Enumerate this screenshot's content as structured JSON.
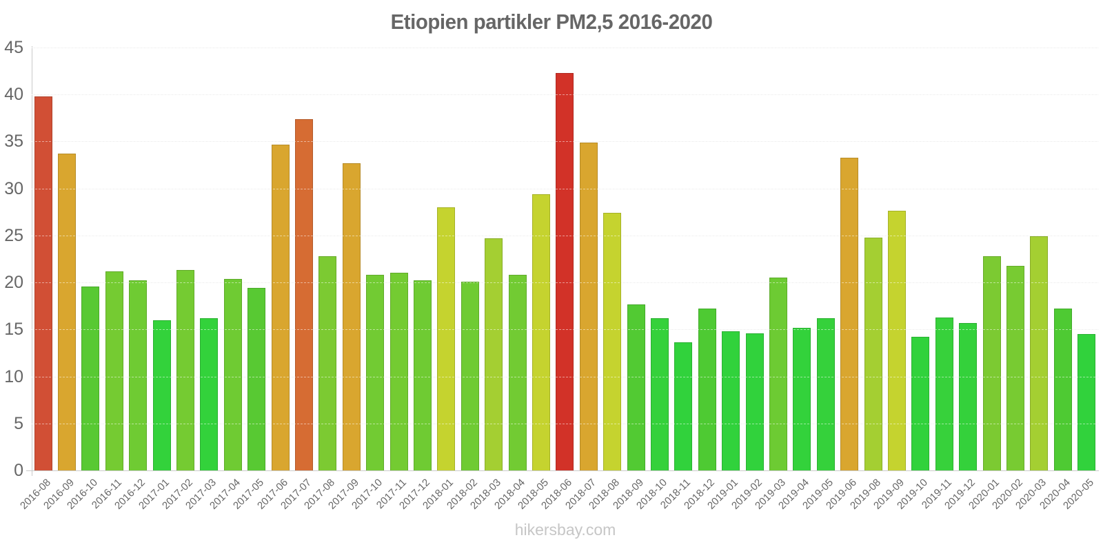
{
  "title": "Etiopien partikler PM2,5 2016-2020",
  "watermark": "hikersbay.com",
  "chart_data": {
    "type": "bar",
    "title": "Etiopien partikler PM2,5 2016-2020",
    "categories": [
      "2016-08",
      "2016-09",
      "2016-10",
      "2016-11",
      "2016-12",
      "2017-01",
      "2017-02",
      "2017-03",
      "2017-04",
      "2017-05",
      "2017-06",
      "2017-07",
      "2017-08",
      "2017-09",
      "2017-10",
      "2017-11",
      "2017-12",
      "2018-01",
      "2018-02",
      "2018-03",
      "2018-04",
      "2018-05",
      "2018-06",
      "2018-07",
      "2018-08",
      "2018-09",
      "2018-10",
      "2018-11",
      "2018-12",
      "2019-01",
      "2019-02",
      "2019-03",
      "2019-04",
      "2019-05",
      "2019-06",
      "2019-08",
      "2019-09",
      "2019-10",
      "2019-11",
      "2019-12",
      "2020-01",
      "2020-02",
      "2020-03",
      "2020-04",
      "2020-05"
    ],
    "values": [
      39.8,
      33.7,
      19.6,
      21.2,
      20.2,
      16.0,
      21.3,
      16.2,
      20.4,
      19.4,
      34.7,
      37.4,
      22.8,
      32.7,
      20.8,
      21.0,
      20.2,
      28.0,
      20.1,
      24.7,
      20.8,
      29.4,
      42.3,
      34.9,
      27.4,
      17.7,
      16.2,
      13.6,
      17.2,
      14.8,
      14.6,
      20.5,
      15.2,
      16.2,
      33.3,
      24.8,
      27.6,
      14.2,
      16.3,
      15.7,
      22.8,
      21.8,
      24.9,
      17.2,
      14.5
    ],
    "colors": [
      "#d14f35",
      "#d9a62f",
      "#58c933",
      "#75cb32",
      "#6fcb33",
      "#33d23b",
      "#75cb32",
      "#33d23b",
      "#6fcb33",
      "#58c933",
      "#d9a62f",
      "#d66c33",
      "#7cca32",
      "#d9a62f",
      "#72cb33",
      "#74cb32",
      "#6fcb33",
      "#c5d32f",
      "#6fcb33",
      "#a4cf32",
      "#72cb33",
      "#c5d32f",
      "#d23228",
      "#d9a62f",
      "#c5d32f",
      "#52ca33",
      "#35d13b",
      "#31d23c",
      "#4eca33",
      "#31d23c",
      "#31d23c",
      "#6dcb33",
      "#33d23b",
      "#35d13b",
      "#d9a62f",
      "#a4cf32",
      "#c5d32f",
      "#31d23c",
      "#37d13b",
      "#34d13b",
      "#7cca32",
      "#78cb32",
      "#a4cf32",
      "#4eca33",
      "#31d23c"
    ],
    "xlabel": "",
    "ylabel": "",
    "ylim": [
      0,
      45
    ],
    "yticks": [
      0,
      5,
      10,
      15,
      20,
      25,
      30,
      35,
      40,
      45
    ],
    "grid": true,
    "legend": "none",
    "color_meaning": "bar color encodes PM2.5 level: green (low) through yellow-green and amber to red (high)"
  },
  "axis_colors": {
    "tick_label": "#666666",
    "grid_line": "#f1f1f1",
    "axis_line": "#cbcbcb",
    "title": "#666666",
    "watermark": "#c6c6c6"
  }
}
